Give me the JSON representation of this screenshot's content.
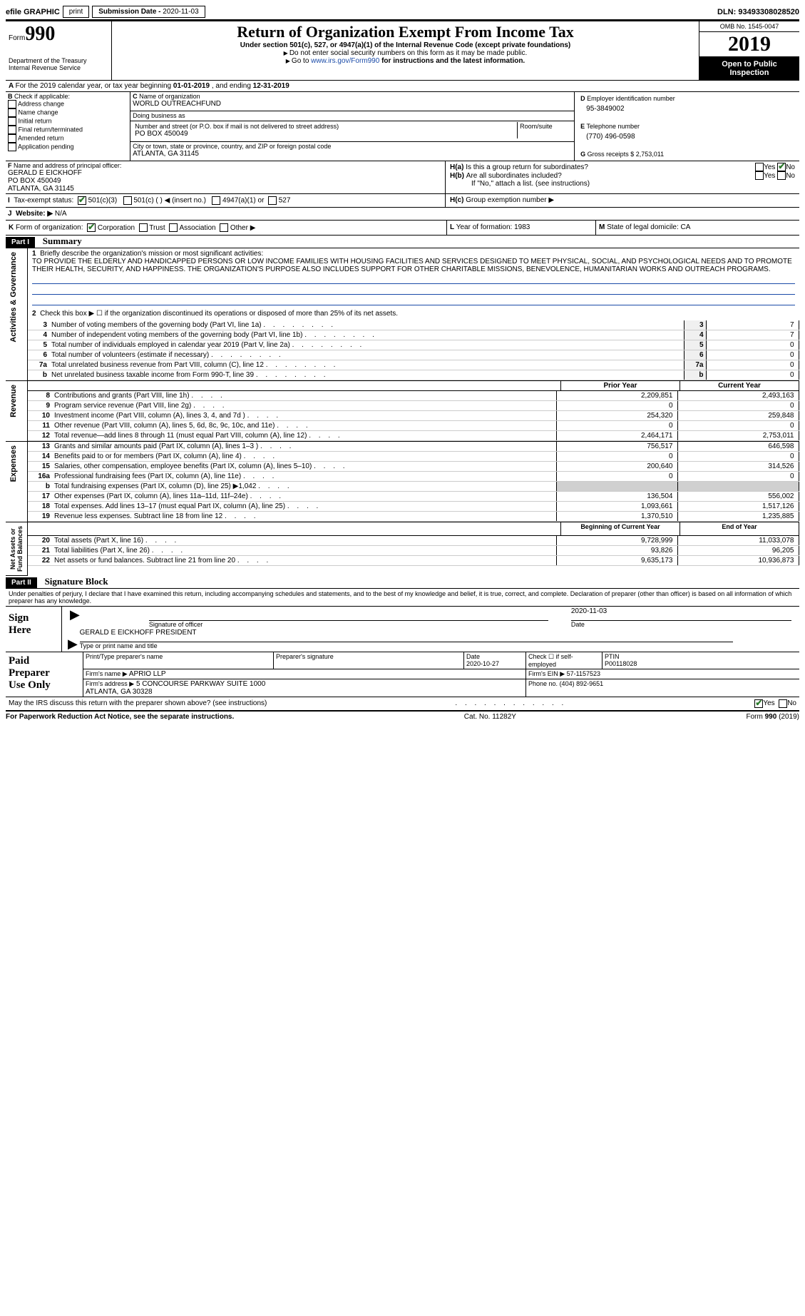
{
  "topbar": {
    "efile": "efile GRAPHIC",
    "print": "print",
    "subdate_label": "Submission Date - ",
    "subdate": "2020-11-03",
    "dln_label": "DLN: ",
    "dln": "93493308028520"
  },
  "header": {
    "form_prefix": "Form",
    "form_num": "990",
    "dept": "Department of the Treasury\nInternal Revenue Service",
    "title": "Return of Organization Exempt From Income Tax",
    "sub": "Under section 501(c), 527, or 4947(a)(1) of the Internal Revenue Code (except private foundations)",
    "instr1": "Do not enter social security numbers on this form as it may be made public.",
    "instr2": "Go to ",
    "instr2_link": "www.irs.gov/Form990",
    "instr2_b": " for instructions and the latest information.",
    "omb": "OMB No. 1545-0047",
    "year": "2019",
    "open": "Open to Public\nInspection"
  },
  "A": {
    "txt": "For the 2019 calendar year, or tax year beginning ",
    "begin": "01-01-2019",
    "mid": " , and ending ",
    "end": "12-31-2019"
  },
  "B": {
    "label": "Check if applicable:",
    "opts": [
      "Address change",
      "Name change",
      "Initial return",
      "Final return/terminated",
      "Amended return",
      "Application pending"
    ]
  },
  "C": {
    "name_lbl": "Name of organization",
    "name": "WORLD OUTREACHFUND",
    "dba_lbl": "Doing business as",
    "dba": "",
    "street_lbl": "Number and street (or P.O. box if mail is not delivered to street address)",
    "room_lbl": "Room/suite",
    "street": "PO BOX 450049",
    "city_lbl": "City or town, state or province, country, and ZIP or foreign postal code",
    "city": "ATLANTA, GA  31145"
  },
  "D": {
    "lbl": "Employer identification number",
    "val": "95-3849002"
  },
  "E": {
    "lbl": "Telephone number",
    "val": "(770) 496-0598"
  },
  "G": {
    "lbl": "Gross receipts $",
    "val": "2,753,011"
  },
  "F": {
    "lbl": "Name and address of principal officer:",
    "name": "GERALD E EICKHOFF",
    "street": "PO BOX 450049",
    "city": "ATLANTA, GA  31145"
  },
  "H": {
    "a": "Is this a group return for subordinates?",
    "b": "Are all subordinates included?",
    "b2": "If \"No,\" attach a list. (see instructions)",
    "c": "Group exemption number ▶",
    "yes": "Yes",
    "no": "No"
  },
  "I": {
    "lbl": "Tax-exempt status:",
    "c3": "501(c)(3)",
    "c": "501(c) (  ) ◀ (insert no.)",
    "a1": "4947(a)(1) or",
    "s527": "527"
  },
  "J": {
    "lbl": "Website: ▶",
    "val": "N/A"
  },
  "K": {
    "lbl": "Form of organization:",
    "opts": [
      "Corporation",
      "Trust",
      "Association",
      "Other ▶"
    ]
  },
  "L": {
    "lbl": "Year of formation:",
    "val": "1983"
  },
  "M": {
    "lbl": "State of legal domicile:",
    "val": "CA"
  },
  "partI": {
    "hdr": "Part I",
    "title": "Summary"
  },
  "sectA": {
    "label": "Activities & Governance",
    "l1_lbl": "Briefly describe the organization's mission or most significant activities:",
    "l1": "TO PROVIDE THE ELDERLY AND HANDICAPPED PERSONS OR LOW INCOME FAMILIES WITH HOUSING FACILITIES AND SERVICES DESIGNED TO MEET PHYSICAL, SOCIAL, AND PSYCHOLOGICAL NEEDS AND TO PROMOTE THEIR HEALTH, SECURITY, AND HAPPINESS. THE ORGANIZATION'S PURPOSE ALSO INCLUDES SUPPORT FOR OTHER CHARITABLE MISSIONS, BENEVOLENCE, HUMANITARIAN WORKS AND OUTREACH PROGRAMS.",
    "l2": "Check this box ▶ ☐  if the organization discontinued its operations or disposed of more than 25% of its net assets.",
    "rows": [
      {
        "n": "3",
        "t": "Number of voting members of the governing body (Part VI, line 1a)",
        "v": "7"
      },
      {
        "n": "4",
        "t": "Number of independent voting members of the governing body (Part VI, line 1b)",
        "v": "7"
      },
      {
        "n": "5",
        "t": "Total number of individuals employed in calendar year 2019 (Part V, line 2a)",
        "v": "0"
      },
      {
        "n": "6",
        "t": "Total number of volunteers (estimate if necessary)",
        "v": "0"
      },
      {
        "n": "7a",
        "t": "Total unrelated business revenue from Part VIII, column (C), line 12",
        "v": "0"
      },
      {
        "n": "b",
        "t": "Net unrelated business taxable income from Form 990-T, line 39",
        "v": "0"
      }
    ]
  },
  "rev": {
    "label": "Revenue",
    "py": "Prior Year",
    "cy": "Current Year",
    "rows": [
      {
        "n": "8",
        "t": "Contributions and grants (Part VIII, line 1h)",
        "p": "2,209,851",
        "c": "2,493,163"
      },
      {
        "n": "9",
        "t": "Program service revenue (Part VIII, line 2g)",
        "p": "0",
        "c": "0"
      },
      {
        "n": "10",
        "t": "Investment income (Part VIII, column (A), lines 3, 4, and 7d )",
        "p": "254,320",
        "c": "259,848"
      },
      {
        "n": "11",
        "t": "Other revenue (Part VIII, column (A), lines 5, 6d, 8c, 9c, 10c, and 11e)",
        "p": "0",
        "c": "0"
      },
      {
        "n": "12",
        "t": "Total revenue—add lines 8 through 11 (must equal Part VIII, column (A), line 12)",
        "p": "2,464,171",
        "c": "2,753,011"
      }
    ]
  },
  "exp": {
    "label": "Expenses",
    "rows": [
      {
        "n": "13",
        "t": "Grants and similar amounts paid (Part IX, column (A), lines 1–3 )",
        "p": "756,517",
        "c": "646,598"
      },
      {
        "n": "14",
        "t": "Benefits paid to or for members (Part IX, column (A), line 4)",
        "p": "0",
        "c": "0"
      },
      {
        "n": "15",
        "t": "Salaries, other compensation, employee benefits (Part IX, column (A), lines 5–10)",
        "p": "200,640",
        "c": "314,526"
      },
      {
        "n": "16a",
        "t": "Professional fundraising fees (Part IX, column (A), line 11e)",
        "p": "0",
        "c": "0"
      },
      {
        "n": "b",
        "t": "Total fundraising expenses (Part IX, column (D), line 25) ▶1,042",
        "p": "",
        "c": ""
      },
      {
        "n": "17",
        "t": "Other expenses (Part IX, column (A), lines 11a–11d, 11f–24e)",
        "p": "136,504",
        "c": "556,002"
      },
      {
        "n": "18",
        "t": "Total expenses. Add lines 13–17 (must equal Part IX, column (A), line 25)",
        "p": "1,093,661",
        "c": "1,517,126"
      },
      {
        "n": "19",
        "t": "Revenue less expenses. Subtract line 18 from line 12",
        "p": "1,370,510",
        "c": "1,235,885"
      }
    ]
  },
  "net": {
    "label": "Net Assets or\nFund Balances",
    "by": "Beginning of Current Year",
    "ey": "End of Year",
    "rows": [
      {
        "n": "20",
        "t": "Total assets (Part X, line 16)",
        "p": "9,728,999",
        "c": "11,033,078"
      },
      {
        "n": "21",
        "t": "Total liabilities (Part X, line 26)",
        "p": "93,826",
        "c": "96,205"
      },
      {
        "n": "22",
        "t": "Net assets or fund balances. Subtract line 21 from line 20",
        "p": "9,635,173",
        "c": "10,936,873"
      }
    ]
  },
  "partII": {
    "hdr": "Part II",
    "title": "Signature Block",
    "decl": "Under penalties of perjury, I declare that I have examined this return, including accompanying schedules and statements, and to the best of my knowledge and belief, it is true, correct, and complete. Declaration of preparer (other than officer) is based on all information of which preparer has any knowledge."
  },
  "sign": {
    "here": "Sign\nHere",
    "sig_lbl": "Signature of officer",
    "date_lbl": "Date",
    "date": "2020-11-03",
    "name": "GERALD E EICKHOFF  PRESIDENT",
    "name_lbl": "Type or print name and title"
  },
  "prep": {
    "label": "Paid\nPreparer\nUse Only",
    "h": [
      "Print/Type preparer's name",
      "Preparer's signature",
      "Date",
      "Check ☐ if self-employed",
      "PTIN"
    ],
    "date": "2020-10-27",
    "ptin": "P00118028",
    "firm_lbl": "Firm's name    ▶",
    "firm": "APRIO LLP",
    "ein_lbl": "Firm's EIN ▶",
    "ein": "57-1157523",
    "addr_lbl": "Firm's address ▶",
    "addr": "5 CONCOURSE PARKWAY SUITE 1000\nATLANTA, GA  30328",
    "phone_lbl": "Phone no.",
    "phone": "(404) 892-9651"
  },
  "discuss": "May the IRS discuss this return with the preparer shown above? (see instructions)",
  "footer": {
    "l": "For Paperwork Reduction Act Notice, see the separate instructions.",
    "c": "Cat. No. 11282Y",
    "r": "Form 990 (2019)"
  }
}
